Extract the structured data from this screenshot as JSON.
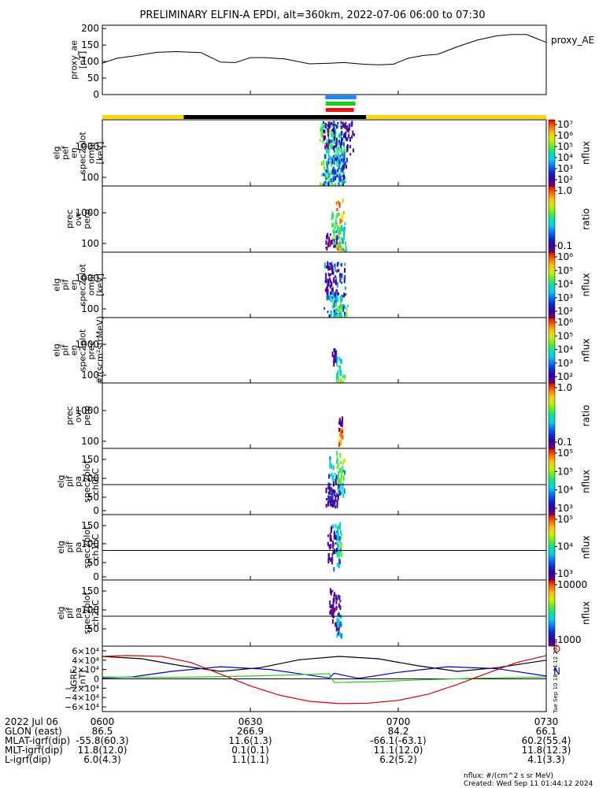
{
  "title": "PRELIMINARY ELFIN-A EPDI, alt=360km, 2022-07-06 06:00 to 07:30",
  "colors": {
    "ae_line": "#000000",
    "bar_yellow": "#ffd800",
    "bar_black": "#000000",
    "bar_blue": "#1e88ff",
    "bar_green": "#10d010",
    "bar_red": "#ee1111",
    "grf_x": "#000000",
    "grf_y": "#0000cc",
    "grf_z": "#22cc22",
    "grf_total": "#dd0000"
  },
  "chart_data": [
    {
      "id": "proxy_ae",
      "type": "line",
      "ylabel": "proxy_ae\n[nT]",
      "legend": "proxy_AE",
      "ylim": [
        0,
        210
      ],
      "yticks": [
        "200",
        "150",
        "100",
        "50",
        "0"
      ],
      "ytick_values": [
        200,
        150,
        100,
        50,
        0
      ],
      "x_minutes": [
        0,
        3,
        7,
        11,
        15,
        20,
        24,
        27,
        30,
        33,
        37,
        42,
        46,
        49,
        53,
        56,
        59,
        62,
        65,
        68,
        72,
        76,
        80,
        83,
        86,
        88,
        90
      ],
      "values": [
        95,
        110,
        118,
        128,
        130,
        127,
        98,
        97,
        112,
        112,
        108,
        93,
        95,
        97,
        92,
        90,
        92,
        110,
        118,
        122,
        145,
        165,
        178,
        182,
        182,
        170,
        158
      ]
    },
    {
      "id": "elf_pef_en_spec2plot_omni",
      "type": "heatmap",
      "ylabel": "elg\npef\nen\nspec2plot\nomni\n[keV]",
      "yticks": [
        "1000",
        "100"
      ],
      "colorbar_label": "nflux",
      "colorbar_ticks": [
        "10⁷",
        "10⁶",
        "10⁵",
        "10⁴",
        "10³",
        "10²"
      ]
    },
    {
      "id": "prec_ovr_perp",
      "type": "heatmap",
      "ylabel": "prec\novr\nperp",
      "yticks": [
        "1000",
        "100"
      ],
      "colorbar_label": "ratio",
      "colorbar_ticks": [
        "1.0",
        "0.1"
      ]
    },
    {
      "id": "elf_pif_en_spec2plot_omni",
      "type": "heatmap",
      "ylabel": "elg\npif\nen\nspec2plot\nomni\n[keV]",
      "yticks": [
        "1000",
        "100"
      ],
      "colorbar_label": "nflux",
      "colorbar_ticks": [
        "10⁶",
        "10⁵",
        "10⁴",
        "10³",
        "10²"
      ]
    },
    {
      "id": "elf_pif_en_spec2plot_prec",
      "type": "heatmap",
      "ylabel": "elg\npif\nen\nspec2plot\nprec\n#/(scm²strMeV)",
      "yticks": [
        "1000",
        "100"
      ],
      "colorbar_label": "nflux",
      "colorbar_ticks": [
        "10⁶",
        "10⁵",
        "10⁴",
        "10³",
        "10²"
      ]
    },
    {
      "id": "prec_ovr_perp_2",
      "type": "heatmap",
      "ylabel": "prec\novr\nperp",
      "yticks": [
        "1000",
        "100"
      ],
      "colorbar_label": "ratio",
      "colorbar_ticks": [
        "1.0",
        "0.1"
      ]
    },
    {
      "id": "elf_pif_pa_ch0LC",
      "type": "heatmap",
      "ylabel": "elg\npif\npa\nspec2plot\nch0LC",
      "yticks": [
        "150",
        "100",
        "50",
        "0"
      ],
      "colorbar_label": "nflux",
      "colorbar_ticks": [
        "10⁵",
        "10⁵",
        "10⁴",
        "10³"
      ]
    },
    {
      "id": "elf_pif_pa_ch1LC",
      "type": "heatmap",
      "ylabel": "elg\npif\npa\nspec2plot\nch1LC",
      "yticks": [
        "150",
        "100",
        "50",
        "0"
      ],
      "colorbar_label": "nflux",
      "colorbar_ticks": [
        "10⁵",
        "10⁴",
        "10³"
      ]
    },
    {
      "id": "elf_pif_pa_ch2LC",
      "type": "heatmap",
      "ylabel": "elg\npif\npa\nspec2plot\nch2LC",
      "yticks": [
        "150",
        "100",
        "50"
      ],
      "colorbar_label": "nflux",
      "colorbar_ticks": [
        "10000",
        "1000"
      ]
    },
    {
      "id": "igrf",
      "type": "line",
      "ylabel": "IGRF\n[nT]",
      "ylim": [
        -70000,
        70000
      ],
      "yticks": [
        "6×10⁴",
        "4×10⁴",
        "2×10⁴",
        "0",
        "−2×10⁴",
        "−4×10⁴",
        "−6×10⁴"
      ],
      "ytick_values": [
        60000,
        40000,
        20000,
        0,
        -20000,
        -40000,
        -60000
      ],
      "side_letters": [
        "D",
        "N"
      ],
      "series": [
        {
          "x_minutes": [
            0,
            8,
            16,
            24,
            32,
            40,
            48,
            56,
            64,
            72,
            80,
            90
          ],
          "values": [
            48000,
            43000,
            28000,
            16000,
            24000,
            41000,
            48000,
            43000,
            28000,
            16000,
            24000,
            40000
          ]
        },
        {
          "x_minutes": [
            0,
            6,
            14,
            24,
            34,
            42,
            46,
            47,
            52,
            60,
            70,
            80,
            90
          ],
          "values": [
            2000,
            4000,
            16000,
            26000,
            20000,
            8000,
            2000,
            12000,
            1000,
            14000,
            26000,
            22000,
            6000
          ]
        },
        {
          "x_minutes": [
            0,
            10,
            20,
            30,
            40,
            46,
            47,
            55,
            65,
            75,
            85,
            90
          ],
          "values": [
            4000,
            3000,
            4000,
            6000,
            9000,
            11000,
            -8000,
            -6000,
            -2000,
            1000,
            3000,
            4000
          ]
        },
        {
          "x_minutes": [
            0,
            5,
            12,
            18,
            24,
            30,
            36,
            42,
            48,
            54,
            60,
            66,
            72,
            78,
            84,
            90
          ],
          "values": [
            48000,
            50000,
            48000,
            35000,
            10000,
            -15000,
            -35000,
            -48000,
            -53000,
            -52000,
            -46000,
            -33000,
            -12000,
            12000,
            35000,
            50000
          ]
        }
      ]
    }
  ],
  "bars": {
    "segments_top": [
      {
        "name": "blue",
        "from": 45.2,
        "to": 51.5
      },
      {
        "name": "green",
        "from": 45.3,
        "to": 51.3
      },
      {
        "name": "red",
        "from": 45.3,
        "to": 51.0
      }
    ],
    "segments_main": [
      {
        "name": "yellow",
        "from": 0,
        "to": 16.5
      },
      {
        "name": "black",
        "from": 16.5,
        "to": 53.5
      },
      {
        "name": "yellow",
        "from": 53.5,
        "to": 90
      }
    ]
  },
  "xaxis": {
    "minutes": [
      0,
      30,
      60,
      90
    ],
    "tick_labels": [
      "0600",
      "0630",
      "0700",
      "0730"
    ],
    "row_labels": [
      "2022 Jul 06",
      "GLON (east)",
      "MLAT-igrf(dip)",
      "MLT-igrf(dip)",
      "L-igrf(dip)"
    ],
    "rows": [
      [
        "0600",
        "0630",
        "0700",
        "0730"
      ],
      [
        "86.5",
        "266.9",
        "84.2",
        "66.1"
      ],
      [
        "-55.8(60.3)",
        "11.6(1.3)",
        "-66.1(-63.1)",
        "60.2(55.4)"
      ],
      [
        "11.8(12.0)",
        "0.1(0.1)",
        "11.1(12.0)",
        "11.8(12.3)"
      ],
      [
        "6.0(4.3)",
        "1.1(1.1)",
        "6.2(5.2)",
        "4.1(3.3)"
      ]
    ]
  },
  "footer": {
    "nflux_note": "nflux: #/(cm^2 s sr MeV)",
    "created": "Created: Wed Sep 11 01:44:12 2024",
    "side_stamp": "Tue Sep 10 18:44:12 2024"
  }
}
